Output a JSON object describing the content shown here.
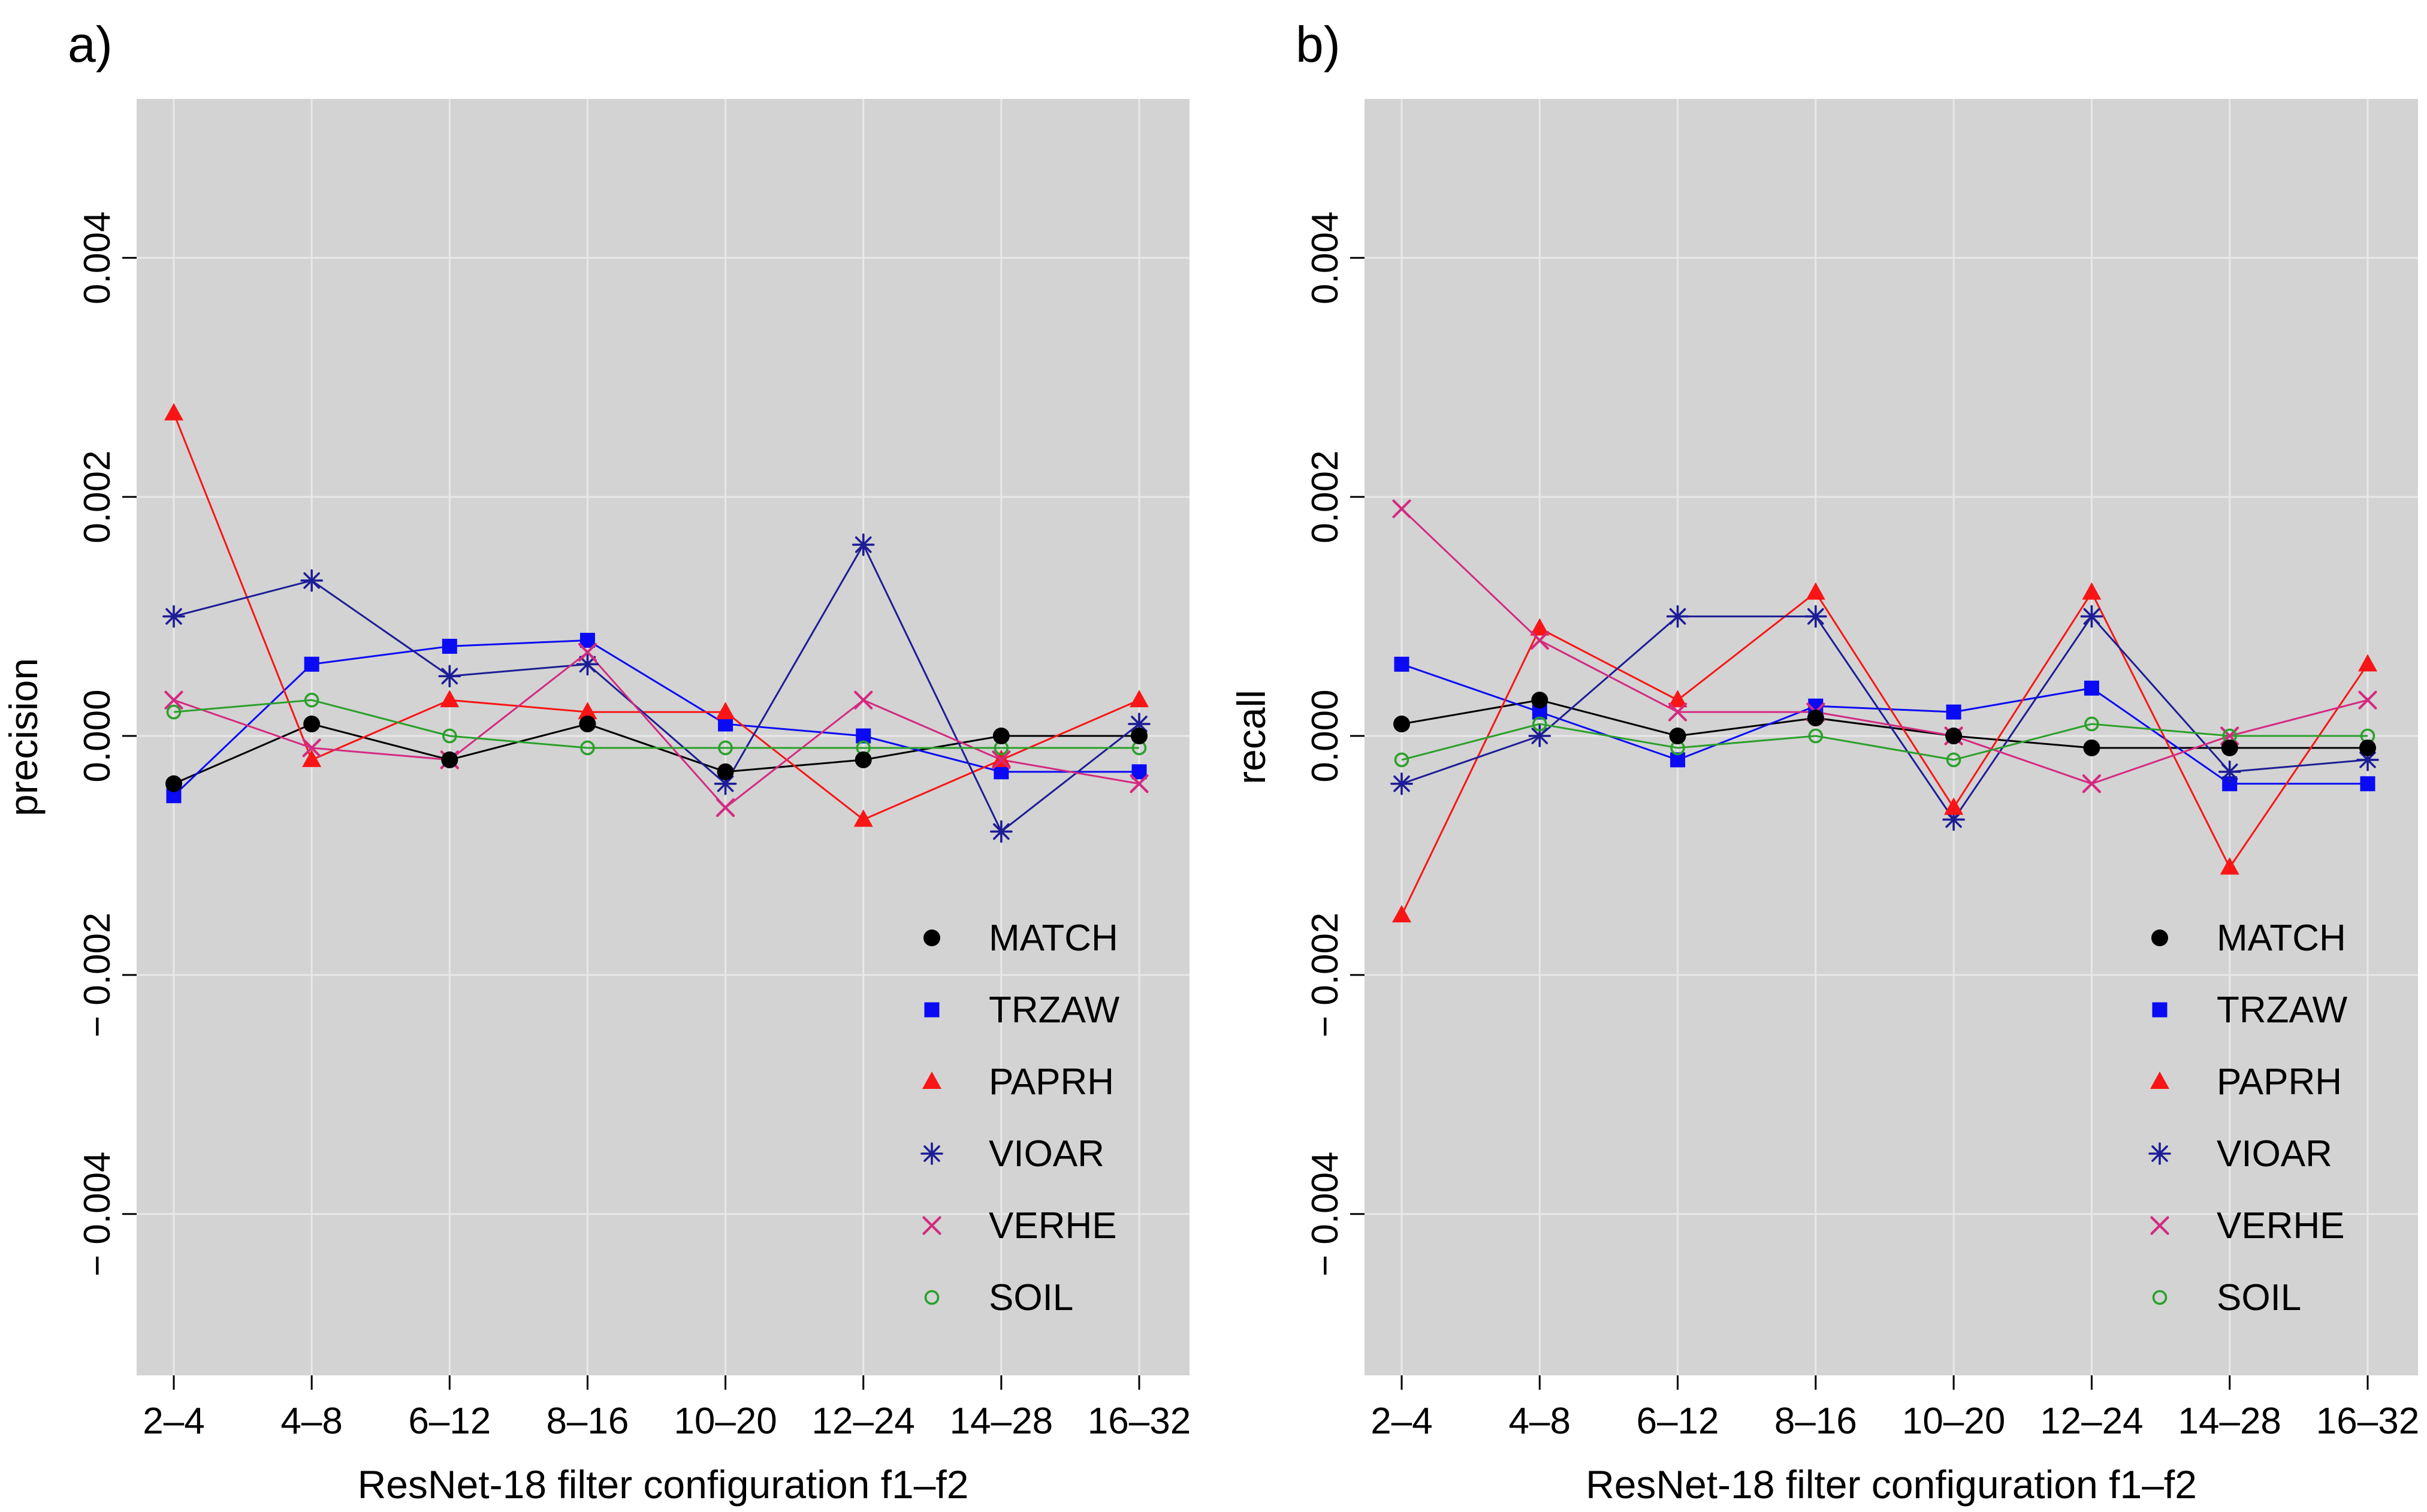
{
  "figure": {
    "panel_labels": [
      "a)",
      "b)"
    ],
    "background_color": "#ffffff",
    "plot_background_color": "#d3d3d3",
    "gridline_color": "#e8e8e8"
  },
  "chart_data": [
    {
      "type": "line",
      "panel": "a",
      "title": "",
      "ylabel": "precision",
      "xlabel": "ResNet-18 filter configuration f1–f2",
      "categories": [
        "2–4",
        "4–8",
        "6–12",
        "8–16",
        "10–20",
        "12–24",
        "14–28",
        "16–32"
      ],
      "ylim": [
        -0.00535,
        0.00533
      ],
      "yticks": [
        {
          "value": 0.004,
          "label": "0.004"
        },
        {
          "value": 0.002,
          "label": "0.002"
        },
        {
          "value": 0.0,
          "label": "0.000"
        },
        {
          "value": -0.002,
          "label": "− 0.002"
        },
        {
          "value": -0.004,
          "label": "− 0.004"
        }
      ],
      "grid": true,
      "legend_position": "inside-bottom-right",
      "series": [
        {
          "name": "MATCH",
          "color": "#000000",
          "marker": "filled-circle",
          "values": [
            -0.0004,
            0.0001,
            -0.0002,
            0.0001,
            -0.0003,
            -0.0002,
            0.0,
            0.0
          ]
        },
        {
          "name": "TRZAW",
          "color": "#0a0af5",
          "marker": "filled-square",
          "values": [
            -0.0005,
            0.0006,
            0.00075,
            0.0008,
            0.0001,
            0.0,
            -0.0003,
            -0.0003
          ]
        },
        {
          "name": "PAPRH",
          "color": "#f91515",
          "marker": "filled-triangle",
          "values": [
            0.0027,
            -0.0002,
            0.0003,
            0.0002,
            0.0002,
            -0.0007,
            -0.0002,
            0.0003
          ]
        },
        {
          "name": "VIOAR",
          "color": "#1d1d96",
          "marker": "asterisk",
          "values": [
            0.001,
            0.0013,
            0.0005,
            0.0006,
            -0.0004,
            0.0016,
            -0.0008,
            0.0001
          ]
        },
        {
          "name": "VERHE",
          "color": "#d42a80",
          "marker": "x-cross",
          "values": [
            0.0003,
            -0.0001,
            -0.0002,
            0.0007,
            -0.0006,
            0.0003,
            -0.0002,
            -0.0004
          ]
        },
        {
          "name": "SOIL",
          "color": "#2ba02b",
          "marker": "open-circle",
          "values": [
            0.0002,
            0.0003,
            0.0,
            -0.0001,
            -0.0001,
            -0.0001,
            -0.0001,
            -0.0001
          ]
        }
      ]
    },
    {
      "type": "line",
      "panel": "b",
      "title": "",
      "ylabel": "recall",
      "xlabel": "ResNet-18 filter configuration f1–f2",
      "categories": [
        "2–4",
        "4–8",
        "6–12",
        "8–16",
        "10–20",
        "12–24",
        "14–28",
        "16–32"
      ],
      "ylim": [
        -0.00535,
        0.00533
      ],
      "yticks": [
        {
          "value": 0.004,
          "label": "0.004"
        },
        {
          "value": 0.002,
          "label": "0.002"
        },
        {
          "value": 0.0,
          "label": "0.000"
        },
        {
          "value": -0.002,
          "label": "− 0.002"
        },
        {
          "value": -0.004,
          "label": "− 0.004"
        }
      ],
      "grid": true,
      "legend_position": "inside-bottom-right",
      "series": [
        {
          "name": "MATCH",
          "color": "#000000",
          "marker": "filled-circle",
          "values": [
            0.0001,
            0.0003,
            0.0,
            0.00015,
            0.0,
            -0.0001,
            -0.0001,
            -0.0001
          ]
        },
        {
          "name": "TRZAW",
          "color": "#0a0af5",
          "marker": "filled-square",
          "values": [
            0.0006,
            0.0002,
            -0.0002,
            0.00025,
            0.0002,
            0.0004,
            -0.0004,
            -0.0004
          ]
        },
        {
          "name": "PAPRH",
          "color": "#f91515",
          "marker": "filled-triangle",
          "values": [
            -0.0015,
            0.0009,
            0.0003,
            0.0012,
            -0.0006,
            0.0012,
            -0.0011,
            0.0006
          ]
        },
        {
          "name": "VIOAR",
          "color": "#1d1d96",
          "marker": "asterisk",
          "values": [
            -0.0004,
            0.0,
            0.001,
            0.001,
            -0.0007,
            0.001,
            -0.0003,
            -0.0002
          ]
        },
        {
          "name": "VERHE",
          "color": "#d42a80",
          "marker": "x-cross",
          "values": [
            0.0019,
            0.0008,
            0.0002,
            0.0002,
            0.0,
            -0.0004,
            0.0,
            0.0003
          ]
        },
        {
          "name": "SOIL",
          "color": "#2ba02b",
          "marker": "open-circle",
          "values": [
            -0.0002,
            0.0001,
            -0.0001,
            0.0,
            -0.0002,
            0.0001,
            0.0,
            0.0
          ]
        }
      ]
    }
  ],
  "legend": {
    "entries": [
      "MATCH",
      "TRZAW",
      "PAPRH",
      "VIOAR",
      "VERHE",
      "SOIL"
    ]
  }
}
